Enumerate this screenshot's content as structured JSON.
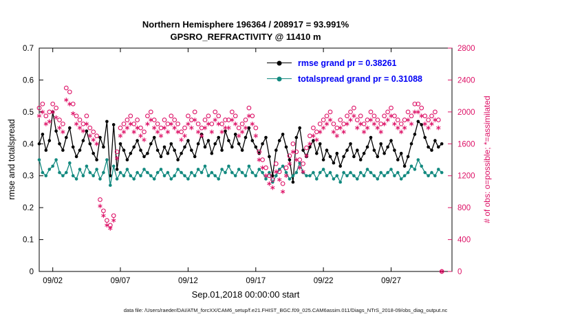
{
  "chart_data": {
    "type": "line",
    "title": "Northern Hemisphere 196364 / 208917 = 93.991%",
    "subtitle": "GPSRO_REFRACTIVITY @ 11410 m",
    "x_axis": {
      "min": 1.0,
      "max": 31.5,
      "tick_days": [
        2,
        7,
        12,
        17,
        22,
        27
      ],
      "tick_labels": [
        "09/02",
        "09/07",
        "09/12",
        "09/17",
        "09/22",
        "09/27"
      ],
      "label": "Sep.01,2018 00:00:00 start"
    },
    "left_axis": {
      "min": 0,
      "max": 0.7,
      "ticks": [
        0,
        0.1,
        0.2,
        0.3,
        0.4,
        0.5,
        0.6,
        0.7
      ],
      "tick_labels": [
        "0",
        "0.1",
        "0.2",
        "0.3",
        "0.4",
        "0.5",
        "0.6",
        "0.7"
      ],
      "label": "rmse and totalspread"
    },
    "right_axis": {
      "min": 0,
      "max": 2800,
      "ticks": [
        0,
        400,
        800,
        1200,
        1600,
        2000,
        2400,
        2800
      ],
      "tick_labels": [
        "0",
        "400",
        "800",
        "1200",
        "1600",
        "2000",
        "2400",
        "2800"
      ],
      "label": "# of obs: o=possible; *=assimilated",
      "color": "#dd1166"
    },
    "x_start": 1.0,
    "x_step": 0.25,
    "n_points": 120,
    "series": [
      {
        "name": "rmse",
        "axis": "left",
        "color": "#000000",
        "marker": "filled-circle",
        "line": true,
        "grand_pr": 0.38261,
        "values": [
          0.4,
          0.43,
          0.38,
          0.41,
          0.5,
          0.44,
          0.4,
          0.38,
          0.42,
          0.45,
          0.39,
          0.36,
          0.38,
          0.41,
          0.44,
          0.4,
          0.37,
          0.35,
          0.42,
          0.39,
          0.47,
          0.3,
          0.46,
          0.32,
          0.4,
          0.38,
          0.35,
          0.37,
          0.39,
          0.41,
          0.38,
          0.36,
          0.37,
          0.4,
          0.42,
          0.38,
          0.36,
          0.39,
          0.37,
          0.4,
          0.38,
          0.35,
          0.37,
          0.39,
          0.41,
          0.38,
          0.36,
          0.4,
          0.43,
          0.39,
          0.41,
          0.37,
          0.4,
          0.42,
          0.38,
          0.44,
          0.41,
          0.39,
          0.43,
          0.4,
          0.38,
          0.42,
          0.45,
          0.41,
          0.39,
          0.37,
          0.4,
          0.42,
          0.36,
          0.3,
          0.38,
          0.41,
          0.43,
          0.39,
          0.35,
          0.28,
          0.42,
          0.45,
          0.38,
          0.36,
          0.39,
          0.41,
          0.37,
          0.4,
          0.35,
          0.38,
          0.36,
          0.34,
          0.37,
          0.33,
          0.36,
          0.38,
          0.4,
          0.36,
          0.38,
          0.35,
          0.37,
          0.39,
          0.42,
          0.38,
          0.36,
          0.4,
          0.37,
          0.39,
          0.41,
          0.38,
          0.35,
          0.37,
          0.33,
          0.36,
          0.4,
          0.43,
          0.47,
          0.46,
          0.42,
          0.39,
          0.38,
          0.41,
          0.39,
          0.4
        ]
      },
      {
        "name": "totalspread",
        "axis": "left",
        "color": "#12897f",
        "marker": "filled-circle",
        "line": true,
        "grand_pr": 0.31088,
        "values": [
          0.35,
          0.31,
          0.3,
          0.32,
          0.33,
          0.35,
          0.31,
          0.3,
          0.31,
          0.34,
          0.3,
          0.29,
          0.32,
          0.3,
          0.33,
          0.31,
          0.3,
          0.32,
          0.29,
          0.31,
          0.35,
          0.27,
          0.33,
          0.29,
          0.31,
          0.3,
          0.32,
          0.3,
          0.29,
          0.31,
          0.3,
          0.32,
          0.31,
          0.3,
          0.29,
          0.31,
          0.32,
          0.3,
          0.31,
          0.29,
          0.3,
          0.32,
          0.31,
          0.3,
          0.29,
          0.31,
          0.3,
          0.32,
          0.31,
          0.33,
          0.3,
          0.31,
          0.3,
          0.29,
          0.32,
          0.31,
          0.33,
          0.31,
          0.3,
          0.32,
          0.31,
          0.3,
          0.33,
          0.31,
          0.3,
          0.32,
          0.31,
          0.29,
          0.31,
          0.28,
          0.3,
          0.32,
          0.33,
          0.31,
          0.29,
          0.3,
          0.31,
          0.34,
          0.31,
          0.3,
          0.3,
          0.31,
          0.29,
          0.31,
          0.32,
          0.3,
          0.31,
          0.29,
          0.3,
          0.28,
          0.31,
          0.3,
          0.31,
          0.3,
          0.29,
          0.31,
          0.3,
          0.32,
          0.31,
          0.3,
          0.29,
          0.31,
          0.3,
          0.31,
          0.32,
          0.3,
          0.31,
          0.29,
          0.3,
          0.31,
          0.33,
          0.32,
          0.35,
          0.33,
          0.31,
          0.3,
          0.31,
          0.3,
          0.32,
          0.31
        ]
      },
      {
        "name": "possible",
        "axis": "right",
        "color": "#dd1166",
        "marker": "open-circle",
        "line": false,
        "values": [
          2050,
          2100,
          1950,
          2000,
          2100,
          2050,
          1900,
          1850,
          2300,
          2250,
          2100,
          1950,
          1900,
          1850,
          1950,
          1800,
          1750,
          1700,
          900,
          760,
          640,
          580,
          700,
          1500,
          1800,
          1850,
          1900,
          1950,
          1850,
          1900,
          1800,
          1750,
          1950,
          2000,
          1900,
          1850,
          1800,
          1900,
          1850,
          1950,
          1900,
          1850,
          1750,
          1800,
          1950,
          1900,
          2000,
          1850,
          1800,
          1900,
          1950,
          1850,
          2000,
          1950,
          1850,
          1900,
          1900,
          2000,
          1950,
          1800,
          1850,
          1900,
          2050,
          1950,
          1800,
          1500,
          1400,
          1300,
          1200,
          1150,
          1350,
          1250,
          1100,
          1300,
          1450,
          1600,
          1500,
          1400,
          1350,
          1550,
          1700,
          1800,
          1750,
          1850,
          1900,
          1950,
          2000,
          1850,
          1800,
          1900,
          1850,
          1950,
          2000,
          2050,
          1900,
          1950,
          1850,
          1900,
          2000,
          1950,
          1900,
          1850,
          1950,
          2000,
          2050,
          1950,
          1900,
          1850,
          1900,
          2000,
          1950,
          2100,
          2100,
          2050,
          1950,
          1900,
          1950,
          2000,
          1900,
          0
        ]
      },
      {
        "name": "assimilated",
        "axis": "right",
        "color": "#dd1166",
        "marker": "asterisk",
        "line": false,
        "values": [
          1950,
          2000,
          1850,
          1880,
          2000,
          1930,
          1800,
          1750,
          2150,
          2100,
          1980,
          1850,
          1800,
          1760,
          1850,
          1700,
          1650,
          1600,
          820,
          700,
          580,
          540,
          640,
          1420,
          1700,
          1750,
          1800,
          1850,
          1750,
          1800,
          1700,
          1650,
          1850,
          1900,
          1800,
          1750,
          1700,
          1800,
          1750,
          1850,
          1800,
          1750,
          1650,
          1700,
          1850,
          1800,
          1900,
          1750,
          1700,
          1800,
          1850,
          1750,
          1900,
          1850,
          1750,
          1800,
          1800,
          1900,
          1850,
          1700,
          1750,
          1800,
          1950,
          1850,
          1700,
          1400,
          1300,
          1200,
          1100,
          1050,
          1250,
          1150,
          1000,
          1200,
          1350,
          1500,
          1400,
          1300,
          1250,
          1450,
          1600,
          1700,
          1650,
          1750,
          1800,
          1850,
          1900,
          1750,
          1700,
          1800,
          1750,
          1850,
          1900,
          1950,
          1800,
          1850,
          1750,
          1800,
          1900,
          1850,
          1800,
          1750,
          1850,
          1900,
          1950,
          1850,
          1800,
          1750,
          1800,
          1900,
          1850,
          2000,
          2000,
          1950,
          1850,
          1800,
          1850,
          1900,
          1800,
          0
        ]
      }
    ]
  },
  "legend": {
    "text_color": "#0000f5",
    "items": [
      {
        "label": "rmse grand pr = 0.38261",
        "color": "#000000"
      },
      {
        "label": "totalspread grand pr = 0.31088",
        "color": "#12897f"
      }
    ]
  },
  "footer": {
    "data_file": "data file: /Users/raeder/DAI/ATM_forcXX/CAM6_setup/f.e21.FHIST_BGC.f09_025.CAM6assim.011/Diags_NTrS_2018-09/obs_diag_output.nc"
  }
}
